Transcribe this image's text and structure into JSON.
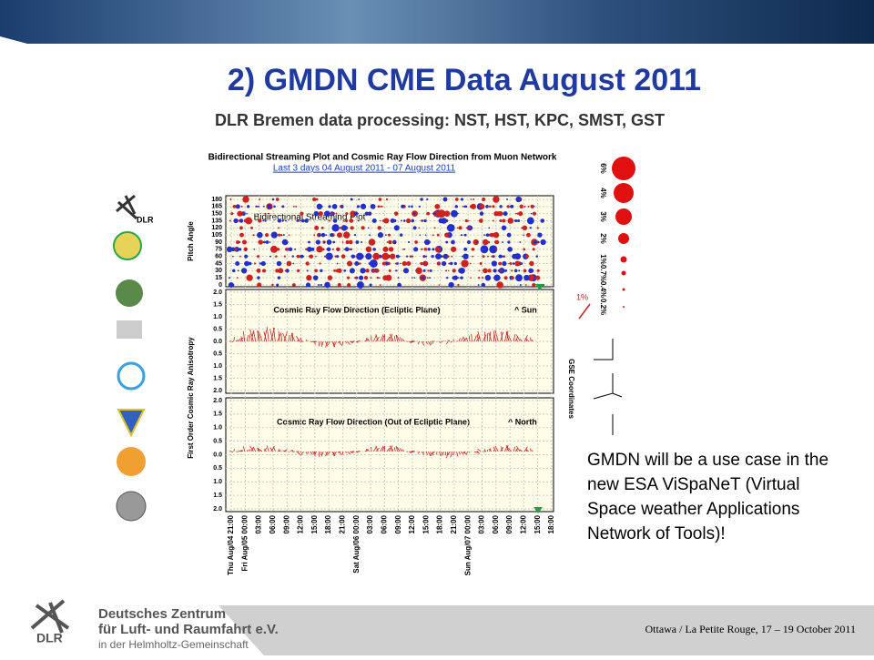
{
  "header": {
    "title": "2) GMDN CME Data August 2011",
    "subtitle": "DLR Bremen data processing: NST, HST, KPC, SMST, GST"
  },
  "figure": {
    "title": "Bidirectional Streaming Plot and Cosmic Ray Flow Direction from Muon Network",
    "subtitle": "Last 3 days 04 August 2011 - 07 August 2011",
    "top_panel": {
      "label": "Bidirectional Streaming Plot",
      "y_label": "Pitch Angle",
      "yticks": [
        "180",
        "165",
        "150",
        "135",
        "120",
        "105",
        "90",
        "75",
        "60",
        "45",
        "30",
        "15",
        "0"
      ]
    },
    "middle_panel": {
      "label": "Cosmic Ray Flow Direction (Ecliptic Plane)",
      "marker": "^  Sun"
    },
    "bottom_panel": {
      "label": "Cosmic Ray Flow Direction (Out of Ecliptic Plane)",
      "marker": "^  North"
    },
    "anisotropy_label": "First Order Cosmic Ray Anisotropy",
    "anisotropy_ticks": [
      "2.0",
      "1.5",
      "1.0",
      "0.5",
      "0.0",
      "0.5",
      "1.0",
      "1.5",
      "2.0"
    ],
    "xticks": [
      "Thu Aug/04 21:00",
      "Fri Aug/05 00:00",
      "03:00",
      "06:00",
      "09:00",
      "12:00",
      "15:00",
      "18:00",
      "21:00",
      "Sat Aug/06 00:00",
      "03:00",
      "06:00",
      "09:00",
      "12:00",
      "15:00",
      "18:00",
      "21:00",
      "Sun Aug/07 00:00",
      "03:00",
      "06:00",
      "09:00",
      "12:00",
      "15:00",
      "18:00"
    ],
    "size_legend": [
      "6%",
      "4%",
      "3%",
      "2%",
      "1%",
      "0.7%",
      "0.4%",
      "0.2%"
    ],
    "scale_label": "1%",
    "coordinates_label": "GSE Coordinates"
  },
  "logos": {
    "dlr": "DLR"
  },
  "body": {
    "text": "GMDN will be a use case in the new ESA ViSpaNeT (Virtual Space weather Applications Network of Tools)!"
  },
  "footer": {
    "logo": "DLR",
    "org_line1": "Deutsches Zentrum",
    "org_line2": "für Luft- und Raumfahrt e.V.",
    "org_line3": "in der Helmholtz-Gemeinschaft",
    "event": "Ottawa / La Petite Rouge, 17 – 19 October 2011"
  }
}
